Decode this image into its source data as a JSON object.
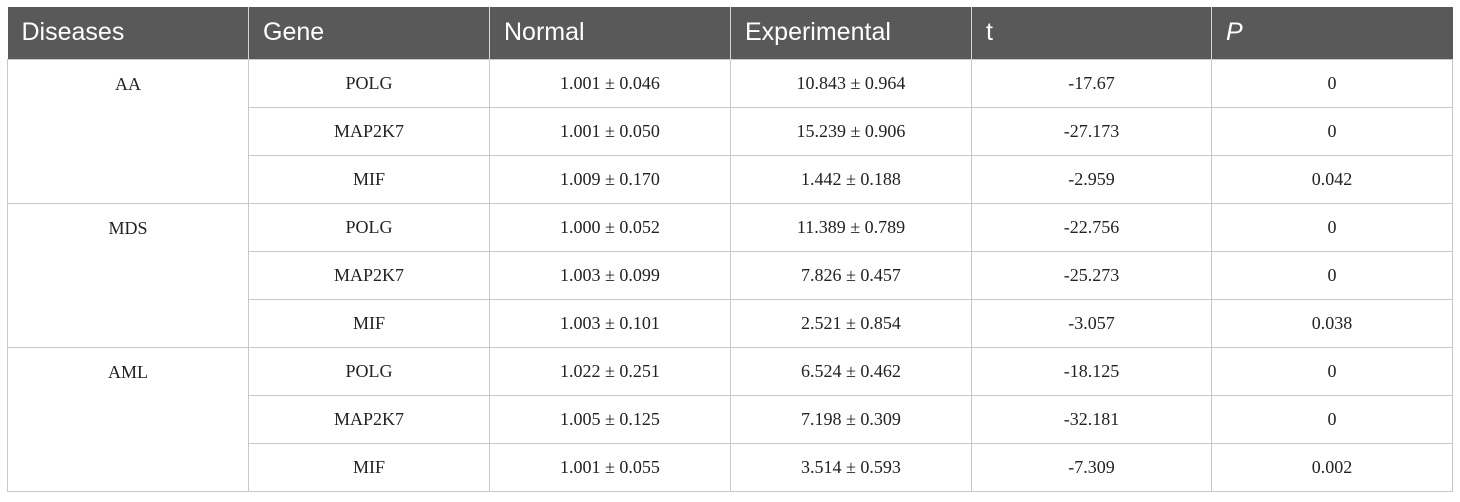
{
  "table": {
    "headers": [
      "Diseases",
      "Gene",
      "Normal",
      "Experimental",
      "t",
      "P"
    ],
    "groups": [
      {
        "disease": "AA",
        "rows": [
          {
            "gene": "POLG",
            "normal": "1.001 ± 0.046",
            "experimental": "10.843 ± 0.964",
            "t": "-17.67",
            "p": "0"
          },
          {
            "gene": "MAP2K7",
            "normal": "1.001 ± 0.050",
            "experimental": "15.239 ± 0.906",
            "t": "-27.173",
            "p": "0"
          },
          {
            "gene": "MIF",
            "normal": "1.009 ± 0.170",
            "experimental": "1.442 ± 0.188",
            "t": "-2.959",
            "p": "0.042"
          }
        ]
      },
      {
        "disease": "MDS",
        "rows": [
          {
            "gene": "POLG",
            "normal": "1.000 ± 0.052",
            "experimental": "11.389 ± 0.789",
            "t": "-22.756",
            "p": "0"
          },
          {
            "gene": "MAP2K7",
            "normal": "1.003 ± 0.099",
            "experimental": "7.826 ± 0.457",
            "t": "-25.273",
            "p": "0"
          },
          {
            "gene": "MIF",
            "normal": "1.003 ± 0.101",
            "experimental": "2.521 ± 0.854",
            "t": "-3.057",
            "p": "0.038"
          }
        ]
      },
      {
        "disease": "AML",
        "rows": [
          {
            "gene": "POLG",
            "normal": "1.022 ± 0.251",
            "experimental": "6.524 ± 0.462",
            "t": "-18.125",
            "p": "0"
          },
          {
            "gene": "MAP2K7",
            "normal": "1.005 ± 0.125",
            "experimental": "7.198 ± 0.309",
            "t": "-32.181",
            "p": "0"
          },
          {
            "gene": "MIF",
            "normal": "1.001 ± 0.055",
            "experimental": "3.514 ± 0.593",
            "t": "-7.309",
            "p": "0.002"
          }
        ]
      }
    ]
  },
  "colors": {
    "header_background": "#595959",
    "header_text": "#ffffff",
    "border": "#c8c8c8"
  }
}
